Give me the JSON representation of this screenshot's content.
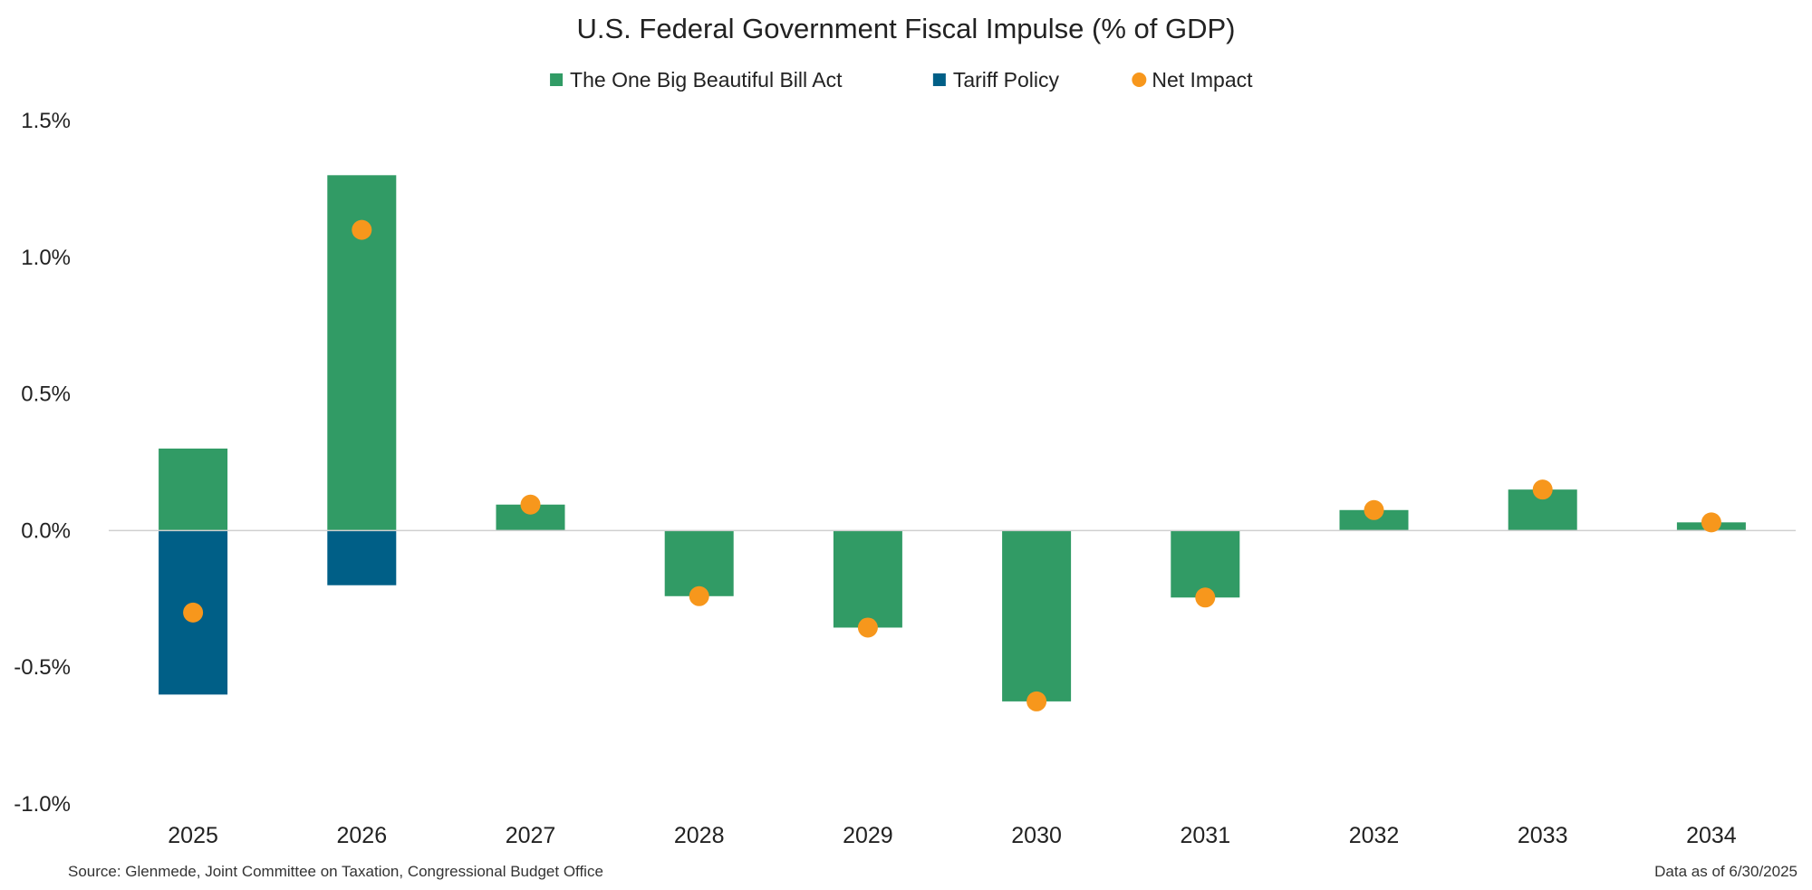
{
  "chart_data": {
    "type": "bar",
    "title": "U.S. Federal Government Fiscal Impulse (% of GDP)",
    "xlabel": "",
    "ylabel": "",
    "categories": [
      "2025",
      "2026",
      "2027",
      "2028",
      "2029",
      "2030",
      "2031",
      "2032",
      "2033",
      "2034"
    ],
    "series": [
      {
        "name": "The One Big Beautiful Bill Act",
        "kind": "bar",
        "color": "#319b65",
        "values": [
          0.3,
          1.3,
          0.095,
          -0.24,
          -0.355,
          -0.625,
          -0.245,
          0.075,
          0.15,
          0.03
        ]
      },
      {
        "name": "Tariff Policy",
        "kind": "bar",
        "color": "#005f87",
        "values": [
          -0.6,
          -0.2,
          0,
          0,
          0,
          0,
          0,
          0,
          0,
          0
        ]
      },
      {
        "name": "Net Impact",
        "kind": "scatter",
        "color": "#f7971c",
        "values": [
          -0.3,
          1.1,
          0.095,
          -0.24,
          -0.355,
          -0.625,
          -0.245,
          0.075,
          0.15,
          0.03
        ]
      }
    ],
    "ylim": [
      -1.0,
      1.5
    ],
    "yticks": [
      -1.0,
      -0.5,
      0.0,
      0.5,
      1.0,
      1.5
    ],
    "ytick_labels": [
      "-1.0%",
      "-0.5%",
      "0.0%",
      "0.5%",
      "1.0%",
      "1.5%"
    ],
    "legend_position": "top-center",
    "grid": false
  },
  "footer": {
    "source": "Source: Glenmede, Joint Committee on Taxation, Congressional Budget Office",
    "data_date": "Data as of 6/30/2025"
  }
}
